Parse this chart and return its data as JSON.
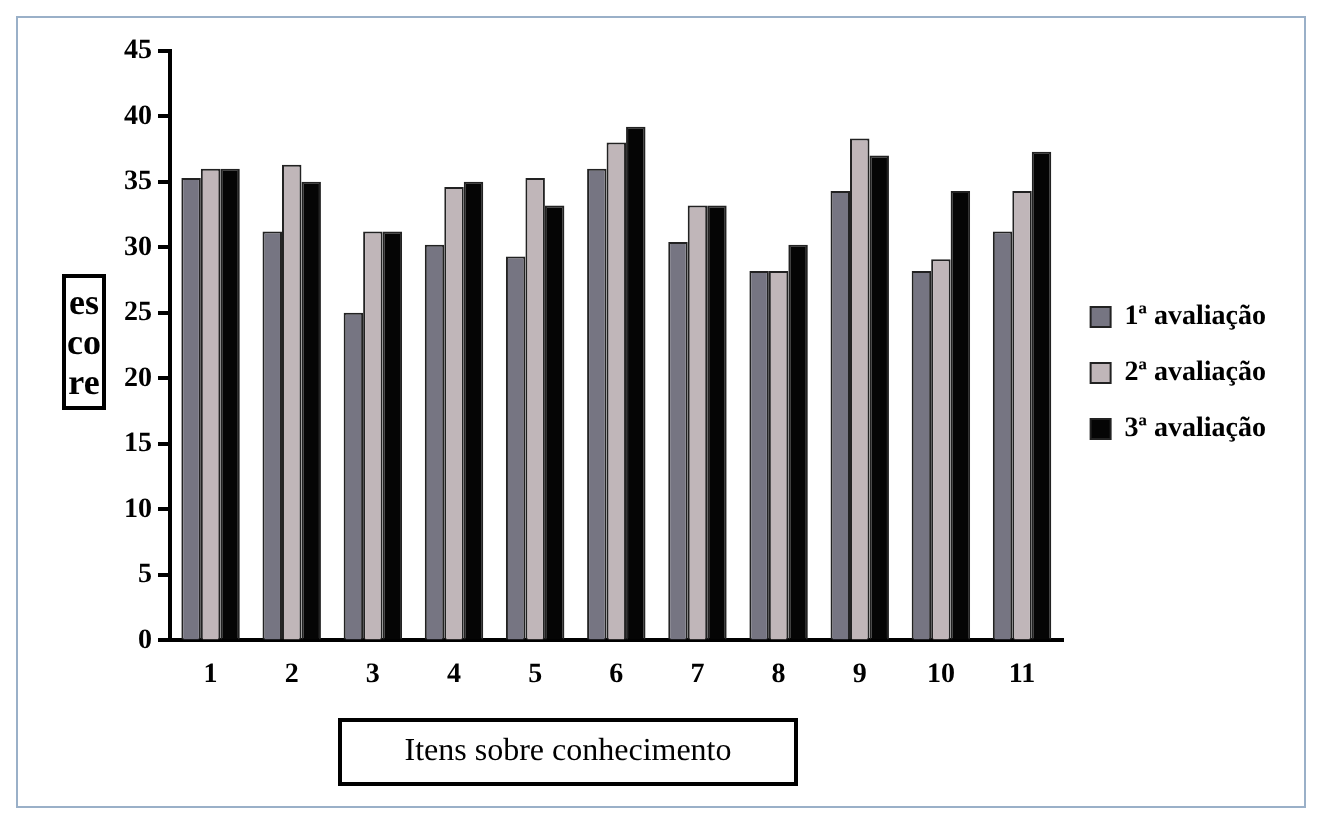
{
  "chart_data": {
    "type": "bar",
    "xlabel": "Itens sobre conhecimento",
    "ylabel": "escore",
    "categories": [
      "1",
      "2",
      "3",
      "4",
      "5",
      "6",
      "7",
      "8",
      "9",
      "10",
      "11"
    ],
    "series": [
      {
        "name": "1ª avaliação",
        "color": "#767582",
        "values": [
          35.3,
          31.2,
          25,
          30.2,
          29.3,
          36,
          30.4,
          28.2,
          34.3,
          28.2,
          31.2
        ]
      },
      {
        "name": "2ª avaliação",
        "color": "#c0b6b9",
        "values": [
          36,
          36.3,
          31.2,
          34.6,
          35.3,
          38,
          33.2,
          28.2,
          38.3,
          29.1,
          34.3
        ]
      },
      {
        "name": "3ª avaliação",
        "color": "#050505",
        "values": [
          36,
          35,
          31.2,
          35,
          33.2,
          39.2,
          33.2,
          30.2,
          37,
          34.3,
          37.3
        ]
      }
    ],
    "ylim": [
      0,
      45
    ],
    "yticks": [
      0,
      5,
      10,
      15,
      20,
      25,
      30,
      35,
      40,
      45
    ],
    "grid": false,
    "legend": "right"
  }
}
